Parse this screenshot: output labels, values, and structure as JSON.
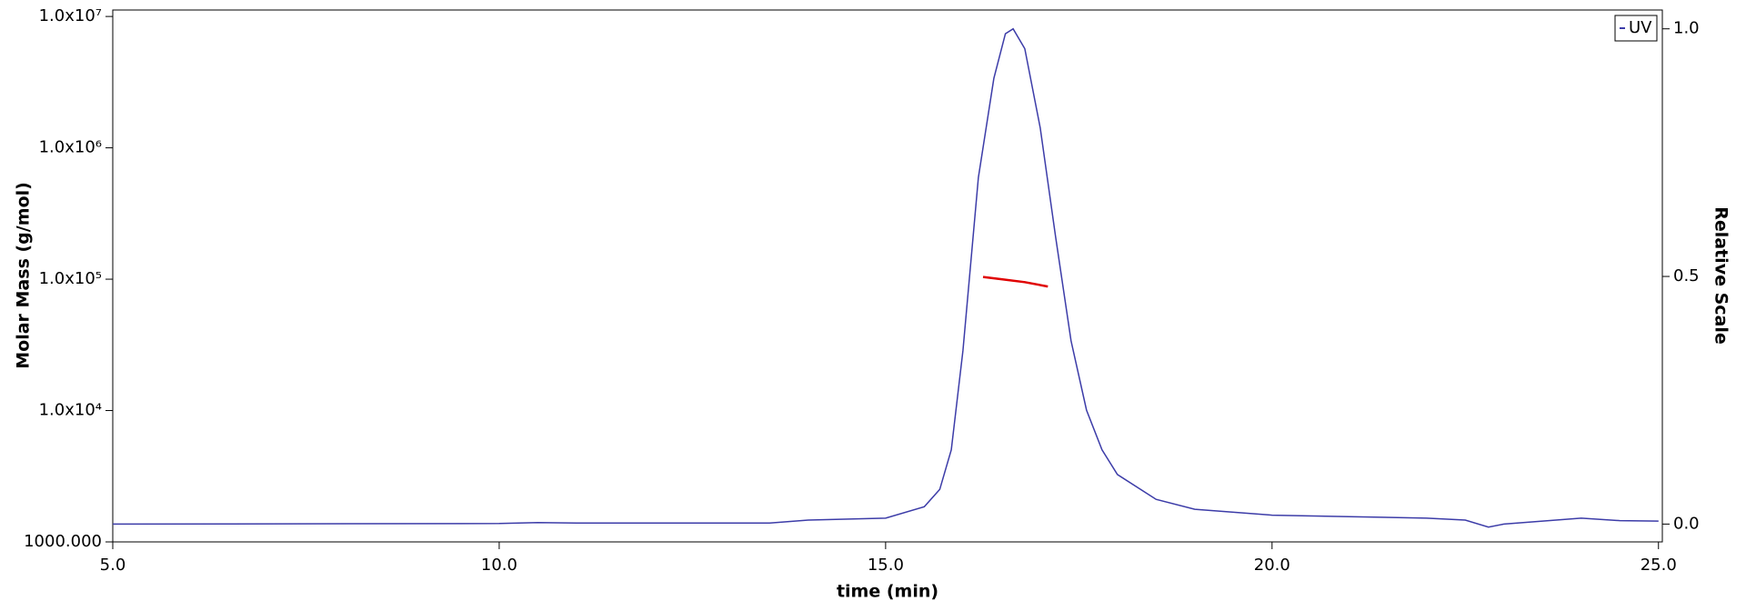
{
  "chart_data": {
    "type": "line",
    "xlabel": "time (min)",
    "ylabel": "Molar Mass (g/mol)",
    "y2label": "Relative Scale",
    "xlim": [
      5,
      25.05
    ],
    "xticks": [
      {
        "value": 5,
        "label": "5.0"
      },
      {
        "value": 10,
        "label": "10.0"
      },
      {
        "value": 15,
        "label": "15.0"
      },
      {
        "value": 20,
        "label": "20.0"
      },
      {
        "value": 25,
        "label": "25.0"
      }
    ],
    "ylog": true,
    "ylim": [
      1000,
      11200000
    ],
    "yticks": [
      {
        "value": 1000,
        "label": "1000.000"
      },
      {
        "value": 10000,
        "label": "1.0x10⁴"
      },
      {
        "value": 100000,
        "label": "1.0x10⁵"
      },
      {
        "value": 1000000,
        "label": "1.0x10⁶"
      },
      {
        "value": 10000000,
        "label": "1.0x10⁷"
      }
    ],
    "y2lim": [
      -0.036,
      1.038
    ],
    "y2ticks": [
      {
        "value": 0,
        "label": "0.0"
      },
      {
        "value": 0.5,
        "label": "0.5"
      },
      {
        "value": 1,
        "label": "1.0"
      }
    ],
    "legend": "upper right",
    "series": [
      {
        "name": "UV",
        "color": "#3c3ca8",
        "axis": "y2",
        "x": [
          5,
          10,
          10.5,
          11,
          13.5,
          14,
          15,
          15.5,
          15.7,
          15.85,
          16,
          16.2,
          16.4,
          16.55,
          16.65,
          16.8,
          17,
          17.2,
          17.4,
          17.6,
          17.8,
          18,
          18.5,
          19,
          20,
          21,
          22,
          22.5,
          22.8,
          23,
          23.5,
          24,
          24.5,
          25
        ],
        "values": [
          0,
          0.001,
          0.003,
          0.002,
          0.002,
          0.008,
          0.012,
          0.035,
          0.07,
          0.15,
          0.35,
          0.7,
          0.9,
          0.99,
          1,
          0.96,
          0.8,
          0.58,
          0.37,
          0.23,
          0.15,
          0.1,
          0.05,
          0.03,
          0.018,
          0.015,
          0.012,
          0.008,
          -0.006,
          0,
          0.006,
          0.012,
          0.007,
          0.006
        ]
      },
      {
        "color": "#e00000",
        "axis": "y",
        "x": [
          16.26,
          16.5,
          16.8,
          17.1
        ],
        "values": [
          104000,
          100000,
          95000,
          88000
        ]
      }
    ]
  }
}
